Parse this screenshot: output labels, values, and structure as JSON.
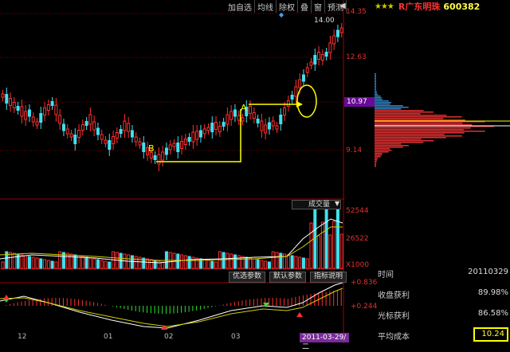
{
  "toolbar": {
    "items": [
      "加自选",
      "均线",
      "除权",
      "叠",
      "窗",
      "预测"
    ]
  },
  "header": {
    "stars": "★★★",
    "stock_name": "R广东明珠",
    "stock_code": "600382"
  },
  "price_axis": {
    "labels": [
      "14.35",
      "12.63",
      "10.97",
      "9.14"
    ],
    "peak_label": "14.00"
  },
  "annotations": {
    "point_a": "A",
    "point_b": "B"
  },
  "volume": {
    "dropdown_label": "成交量",
    "labels": [
      "52544",
      "26522",
      "X1000"
    ]
  },
  "buttons": {
    "optimize": "优选参数",
    "default": "默认参数",
    "indicator_help": "指标说明"
  },
  "macd": {
    "labels": [
      "+0.836",
      "+0.244"
    ]
  },
  "x_axis": {
    "ticks": [
      "12",
      "01",
      "02",
      "03"
    ],
    "current_date": "2011-03-29/二"
  },
  "info": {
    "time_label": "时间",
    "time_value": "20110329",
    "profit_label": "收盘获利",
    "profit_value": "89.98%",
    "cursor_label": "光标获利",
    "cursor_value": "86.58%",
    "cost_label": "平均成本",
    "cost_value": "10.24"
  },
  "colors": {
    "up": "#ff3030",
    "down": "#40e0f0",
    "highlight": "#ffff00",
    "chip_blue": "#3080c0",
    "chip_red": "#e03030"
  }
}
